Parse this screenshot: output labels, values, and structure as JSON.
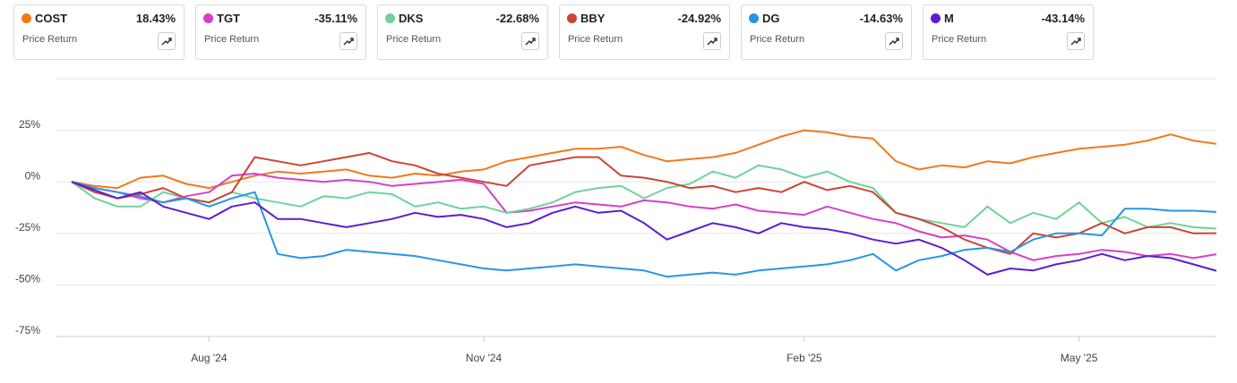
{
  "chart_data": {
    "type": "line",
    "metric_label": "Price Return",
    "change_labels": [
      "18.43%",
      "-35.11%",
      "-22.68%",
      "-24.92%",
      "-14.63%",
      "-43.14%"
    ],
    "categories": [
      null,
      null,
      null,
      null,
      null,
      null,
      "Aug '24",
      null,
      null,
      null,
      null,
      null,
      null,
      null,
      null,
      null,
      null,
      null,
      "Nov '24",
      null,
      null,
      null,
      null,
      null,
      null,
      null,
      null,
      null,
      null,
      null,
      null,
      null,
      "Feb '25",
      null,
      null,
      null,
      null,
      null,
      null,
      null,
      null,
      null,
      null,
      null,
      "May '25",
      null,
      null,
      null,
      null,
      null,
      null
    ],
    "ylim": [
      -75,
      50
    ],
    "yticks": [
      {
        "value": -75,
        "label": "-75%"
      },
      {
        "value": -50,
        "label": "-50%"
      },
      {
        "value": -25,
        "label": "-25%"
      },
      {
        "value": 0,
        "label": "0%"
      },
      {
        "value": 25,
        "label": "25%"
      }
    ],
    "grid": true,
    "series": [
      {
        "name": "COST",
        "color": "#f07a1a",
        "values": [
          0,
          -2,
          -3,
          2,
          3,
          -1,
          -3,
          0,
          3,
          5,
          4,
          5,
          6,
          3,
          2,
          4,
          3,
          5,
          6,
          10,
          12,
          14,
          16,
          16,
          17,
          13,
          10,
          11,
          12,
          14,
          18,
          22,
          25,
          24,
          22,
          21,
          10,
          6,
          8,
          7,
          10,
          9,
          12,
          14,
          16,
          17,
          18,
          20,
          23,
          20,
          18.43
        ]
      },
      {
        "name": "TGT",
        "color": "#d63fc9",
        "values": [
          0,
          -3,
          -5,
          -8,
          -10,
          -7,
          -5,
          3,
          4,
          2,
          1,
          0,
          1,
          0,
          -2,
          -1,
          0,
          1,
          -1,
          -15,
          -14,
          -12,
          -10,
          -11,
          -12,
          -9,
          -10,
          -12,
          -13,
          -11,
          -14,
          -15,
          -16,
          -12,
          -15,
          -18,
          -20,
          -24,
          -27,
          -26,
          -28,
          -34,
          -38,
          -36,
          -35,
          -33,
          -34,
          -36,
          -35,
          -37,
          -35.11
        ]
      },
      {
        "name": "DKS",
        "color": "#6ed39a",
        "values": [
          0,
          -8,
          -12,
          -12,
          -5,
          -8,
          -10,
          -5,
          -8,
          -10,
          -12,
          -7,
          -8,
          -5,
          -6,
          -12,
          -10,
          -13,
          -12,
          -15,
          -13,
          -10,
          -5,
          -3,
          -2,
          -8,
          -3,
          -1,
          5,
          2,
          8,
          6,
          2,
          5,
          0,
          -3,
          -15,
          -18,
          -20,
          -22,
          -12,
          -20,
          -15,
          -18,
          -10,
          -20,
          -17,
          -22,
          -20,
          -22,
          -22.68
        ]
      },
      {
        "name": "BBY",
        "color": "#cc4433",
        "values": [
          0,
          -5,
          -8,
          -6,
          -3,
          -8,
          -10,
          -5,
          12,
          10,
          8,
          10,
          12,
          14,
          10,
          8,
          4,
          2,
          0,
          -2,
          8,
          10,
          12,
          12,
          3,
          2,
          0,
          -3,
          -2,
          -5,
          -3,
          -5,
          0,
          -4,
          -2,
          -5,
          -15,
          -18,
          -22,
          -28,
          -32,
          -35,
          -25,
          -27,
          -25,
          -20,
          -25,
          -22,
          -22,
          -25,
          -24.92
        ]
      },
      {
        "name": "DG",
        "color": "#2596e8",
        "values": [
          0,
          -3,
          -5,
          -7,
          -10,
          -8,
          -12,
          -8,
          -5,
          -35,
          -37,
          -36,
          -33,
          -34,
          -35,
          -36,
          -38,
          -40,
          -42,
          -43,
          -42,
          -41,
          -40,
          -41,
          -42,
          -43,
          -46,
          -45,
          -44,
          -45,
          -43,
          -42,
          -41,
          -40,
          -38,
          -35,
          -43,
          -38,
          -36,
          -33,
          -32,
          -34,
          -28,
          -25,
          -25,
          -26,
          -13,
          -13,
          -14,
          -14,
          -14.63
        ]
      },
      {
        "name": "M",
        "color": "#5b1dd1",
        "values": [
          0,
          -4,
          -8,
          -5,
          -12,
          -15,
          -18,
          -12,
          -10,
          -18,
          -18,
          -20,
          -22,
          -20,
          -18,
          -15,
          -17,
          -16,
          -18,
          -22,
          -20,
          -15,
          -12,
          -15,
          -14,
          -20,
          -28,
          -24,
          -20,
          -22,
          -25,
          -20,
          -22,
          -23,
          -25,
          -28,
          -30,
          -28,
          -32,
          -38,
          -45,
          -42,
          -43,
          -40,
          -38,
          -35,
          -38,
          -36,
          -37,
          -40,
          -43.14
        ]
      }
    ]
  }
}
